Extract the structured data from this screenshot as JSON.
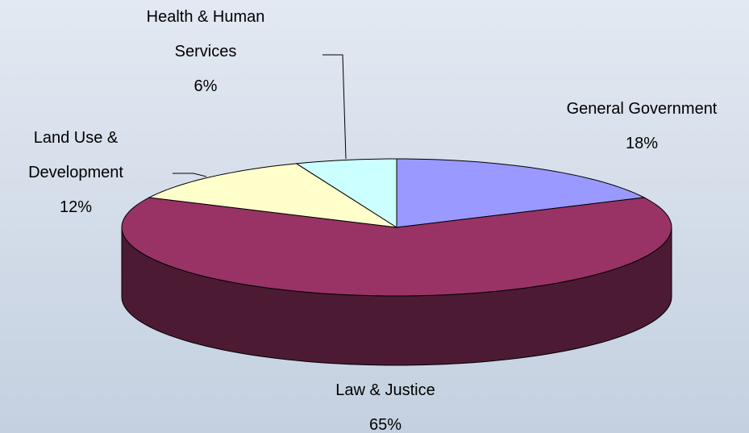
{
  "chart_data": {
    "type": "pie",
    "categories": [
      "General Government",
      "Law & Justice",
      "Land Use & Development",
      "Health & Human Services"
    ],
    "values": [
      18,
      65,
      12,
      6
    ],
    "value_labels": [
      "18%",
      "65%",
      "12%",
      "6%"
    ],
    "colors": [
      "#9999ff",
      "#993366",
      "#ffffcc",
      "#ccffff"
    ]
  }
}
